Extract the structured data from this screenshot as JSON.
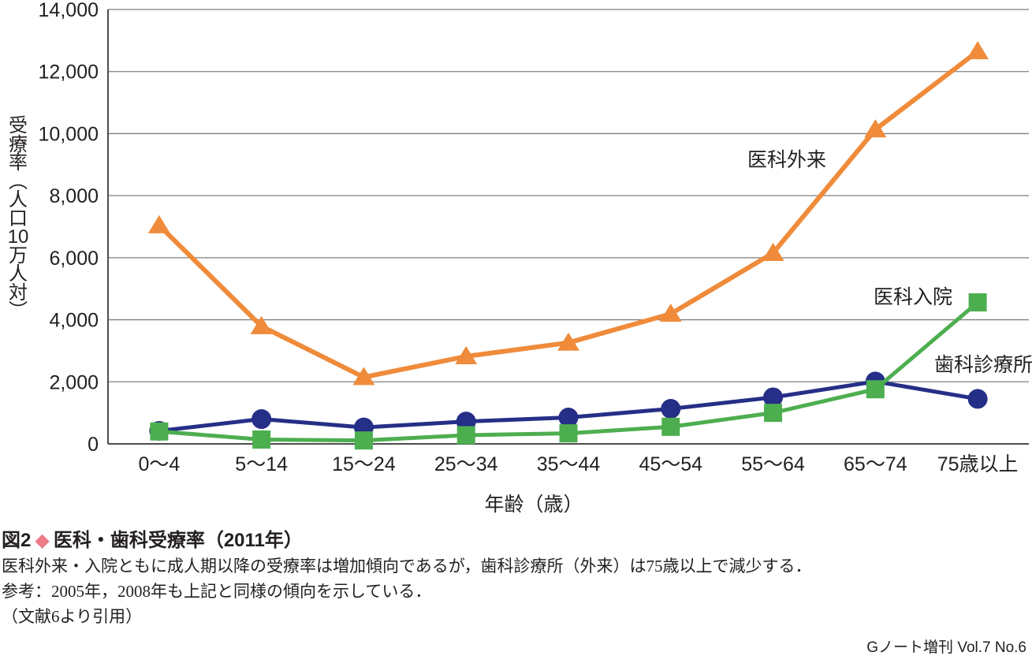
{
  "page": {
    "footer_credit": "Gノート増刊 Vol.7 No.6"
  },
  "caption": {
    "figure_label": "図2",
    "diamond_icon_color": "#ee7c87",
    "title": "医科・歯科受療率（2011年）",
    "line1": "医科外来・入院ともに成人期以降の受療率は増加傾向であるが，歯科診療所（外来）は75歳以上で減少する．",
    "line2": "参考：2005年，2008年も上記と同様の傾向を示している．",
    "line3": "（文献6より引用）"
  },
  "chart_data": {
    "type": "line",
    "title": "",
    "xlabel": "年齢（歳）",
    "ylabel": "受療率（人口10万人対）",
    "ylabel_vertical": [
      "受",
      "療",
      "率",
      "︵",
      "人",
      "口",
      "10",
      "万",
      "人",
      "対",
      "︶"
    ],
    "ylim": [
      0,
      14000
    ],
    "ytick_step": 2000,
    "ytick_labels": [
      "0",
      "2,000",
      "4,000",
      "6,000",
      "8,000",
      "10,000",
      "12,000",
      "14,000"
    ],
    "grid": true,
    "grid_color": "#7f7f7f",
    "axis_color": "#4d4d4d",
    "categories": [
      "0～4",
      "5～14",
      "15～24",
      "25～34",
      "35～44",
      "45～54",
      "55～64",
      "65～74",
      "75歳以上"
    ],
    "series": [
      {
        "key": "medical-outpatient",
        "name": "医科外来",
        "marker": "triangle",
        "color": "#ef8b3a",
        "values": [
          7040,
          3790,
          2150,
          2820,
          3260,
          4190,
          6150,
          10130,
          12650
        ],
        "label_x": 948,
        "label_y": 211
      },
      {
        "key": "dental-clinic",
        "name": "歯科診療所",
        "marker": "circle",
        "color": "#252f87",
        "values": [
          420,
          800,
          530,
          720,
          850,
          1130,
          1500,
          2010,
          1450
        ],
        "label_x": 1185,
        "label_y": 471
      },
      {
        "key": "medical-inpatient",
        "name": "医科入院",
        "marker": "square",
        "color": "#4dae4f",
        "values": [
          400,
          140,
          110,
          280,
          340,
          550,
          1000,
          1760,
          4560
        ],
        "label_x": 1108,
        "label_y": 385
      }
    ]
  }
}
